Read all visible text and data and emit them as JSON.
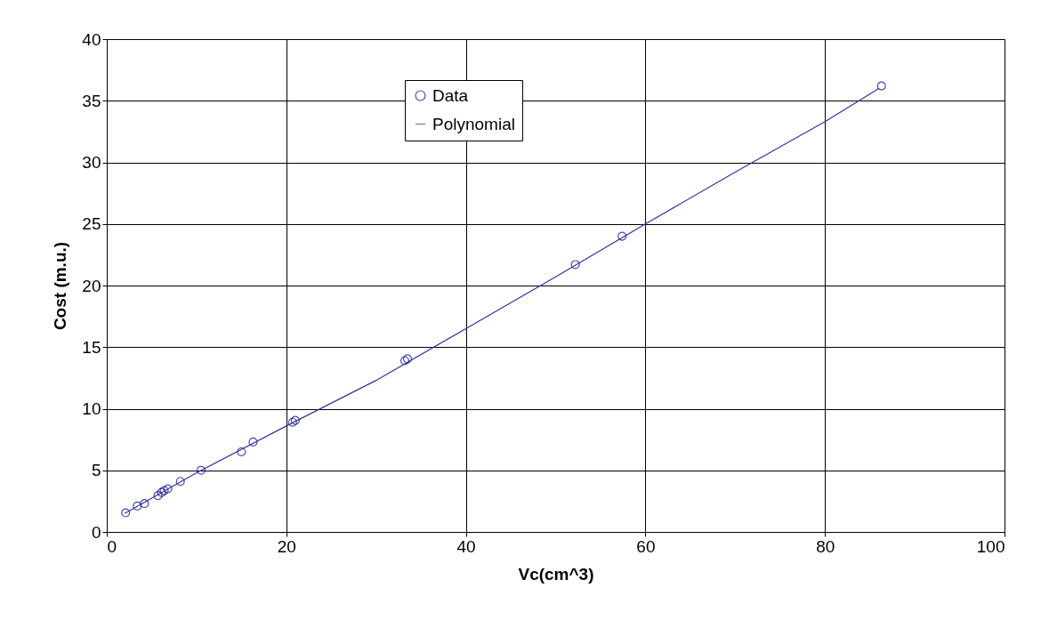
{
  "chart_data": {
    "type": "scatter",
    "xlabel": "Vc(cm^3)",
    "ylabel": "Cost (m.u.)",
    "xlim": [
      0,
      100
    ],
    "xticks": [
      0,
      20,
      40,
      60,
      80,
      100
    ],
    "ylim": [
      0,
      40
    ],
    "yticks": [
      0,
      5,
      10,
      15,
      20,
      25,
      30,
      35,
      40
    ],
    "grid": true,
    "legend": "top",
    "series": [
      {
        "name": "Data",
        "marker": "circle",
        "color": "#000080",
        "x": [
          2.1,
          3.4,
          4.2,
          5.7,
          6.1,
          6.4,
          6.8,
          8.2,
          10.5,
          15,
          16.3,
          20.7,
          21,
          33.2,
          33.5,
          52.2,
          57.4,
          86.3
        ],
        "values": [
          1.55,
          2.1,
          2.3,
          2.95,
          3.2,
          3.35,
          3.5,
          4.1,
          5.0,
          6.5,
          7.3,
          8.9,
          9.05,
          13.9,
          14.05,
          21.7,
          24,
          36.2
        ]
      },
      {
        "name": "Polynomial",
        "type": "line",
        "marker": "none",
        "line_style": "solid",
        "color": "#3333a0",
        "x": [
          2,
          10,
          20,
          30,
          40,
          50,
          60,
          70,
          80,
          86
        ],
        "values": [
          1.5,
          4.8,
          8.6,
          12.3,
          16.5,
          20.7,
          25,
          29.2,
          33.3,
          36
        ]
      }
    ]
  }
}
